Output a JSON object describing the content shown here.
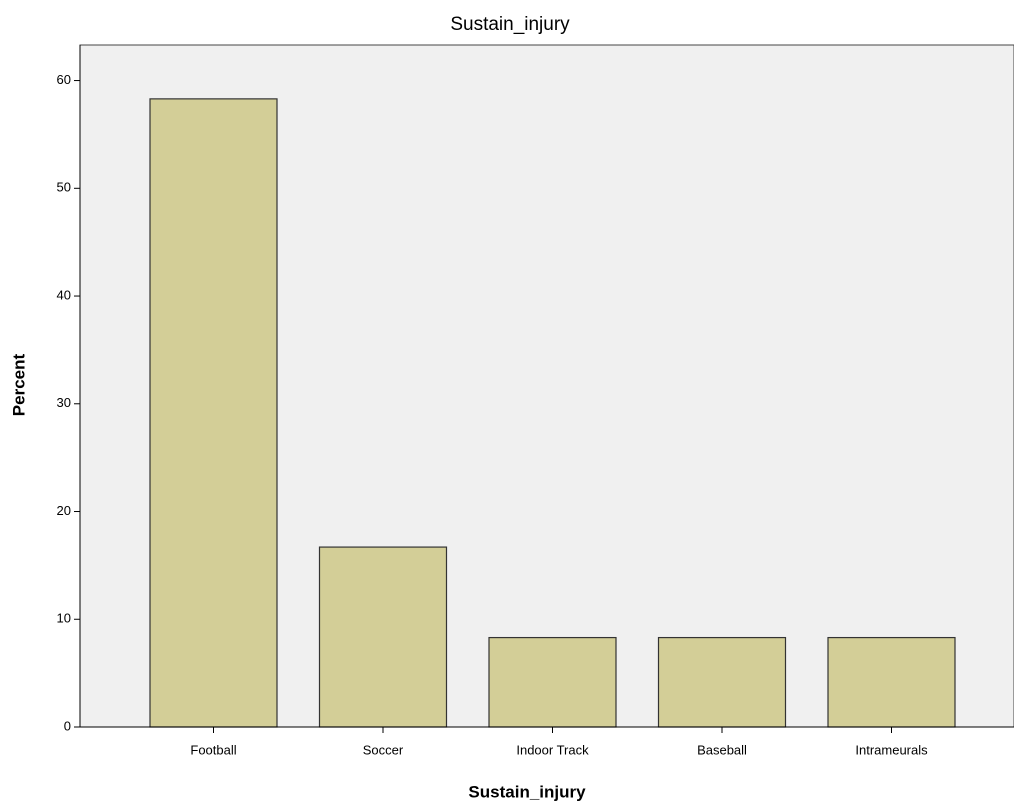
{
  "chart_data": {
    "type": "bar",
    "title": "Sustain_injury",
    "x_label": "Sustain_injury",
    "y_label": "Percent",
    "categories": [
      "Football",
      "Soccer",
      "Indoor Track",
      "Baseball",
      "Intrameurals"
    ],
    "values": [
      58.3,
      16.7,
      8.3,
      8.3,
      8.3
    ],
    "color": "#d3ce97",
    "ylim": [
      0,
      63.3
    ],
    "yticks": [
      0,
      10,
      20,
      30,
      40,
      50,
      60
    ],
    "grid": false
  }
}
